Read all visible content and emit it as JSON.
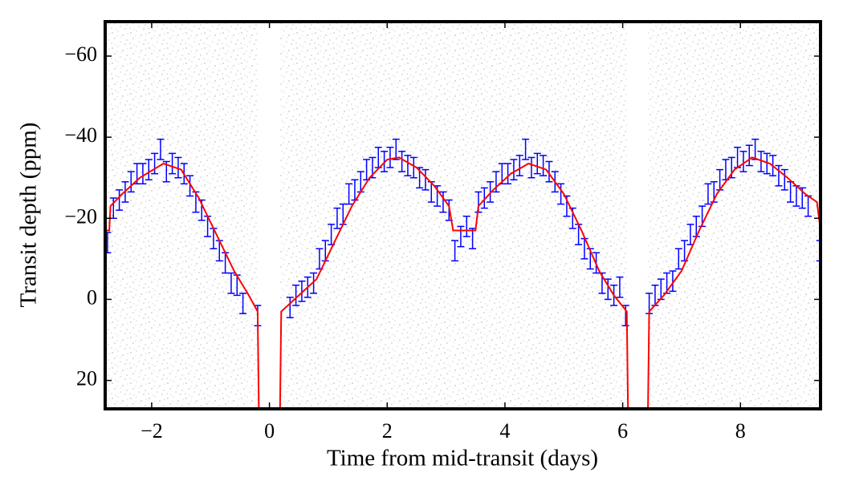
{
  "chart_data": {
    "type": "errorbar",
    "x_label": "Time from mid-transit (days)",
    "y_label": "Transit depth (ppm)",
    "xlim": [
      -2.79,
      9.36
    ],
    "ylim": [
      27,
      -68.5
    ],
    "xticks": [
      {
        "value": -2,
        "label": "−2"
      },
      0,
      2,
      4,
      6,
      8
    ],
    "yticks": [
      {
        "value": -60,
        "label": "−60"
      },
      {
        "value": -40,
        "label": "−40"
      },
      {
        "value": -20,
        "label": "−20"
      },
      0,
      20
    ],
    "observed_ranges": [
      [
        -2.79,
        -0.18
      ],
      [
        0.18,
        6.09
      ],
      [
        6.43,
        9.36
      ]
    ],
    "series": [
      {
        "type": "errorbar",
        "color": "#0000ff",
        "error": 2.5,
        "x": [
          -2.75,
          -2.65,
          -2.55,
          -2.45,
          -2.35,
          -2.25,
          -2.15,
          -2.05,
          -1.95,
          -1.85,
          -1.75,
          -1.65,
          -1.55,
          -1.45,
          -1.35,
          -1.25,
          -1.15,
          -1.05,
          -0.95,
          -0.85,
          -0.75,
          -0.65,
          -0.55,
          -0.45,
          -0.2,
          0.35,
          0.45,
          0.55,
          0.65,
          0.75,
          0.85,
          0.95,
          1.05,
          1.15,
          1.25,
          1.35,
          1.45,
          1.55,
          1.65,
          1.75,
          1.85,
          1.95,
          2.05,
          2.15,
          2.25,
          2.35,
          2.45,
          2.55,
          2.65,
          2.75,
          2.85,
          2.95,
          3.05,
          3.15,
          3.25,
          3.35,
          3.45,
          3.55,
          3.65,
          3.75,
          3.85,
          3.95,
          4.05,
          4.15,
          4.25,
          4.35,
          4.45,
          4.55,
          4.65,
          4.75,
          4.85,
          4.95,
          5.05,
          5.15,
          5.25,
          5.35,
          5.45,
          5.55,
          5.65,
          5.75,
          5.85,
          5.95,
          6.05,
          6.45,
          6.55,
          6.65,
          6.75,
          6.85,
          6.95,
          7.05,
          7.15,
          7.25,
          7.35,
          7.45,
          7.55,
          7.65,
          7.75,
          7.85,
          7.95,
          8.05,
          8.15,
          8.25,
          8.35,
          8.45,
          8.55,
          8.65,
          8.75,
          8.85,
          8.95,
          9.05,
          9.15,
          9.35
        ],
        "values": [
          -14,
          -22.5,
          -24.5,
          -26.5,
          -29,
          -31,
          -31,
          -32,
          -33.5,
          -37,
          -31.5,
          -33.5,
          -32.5,
          -31,
          -28,
          -24,
          -22,
          -18,
          -15,
          -12,
          -9,
          -4,
          -3.5,
          1,
          4,
          2,
          -1,
          -2,
          -3,
          -4,
          -10,
          -12,
          -16,
          -20,
          -21,
          -26,
          -27,
          -29,
          -32,
          -32.5,
          -35,
          -34,
          -35,
          -37,
          -34,
          -33,
          -32.5,
          -30,
          -29.5,
          -26.5,
          -25.5,
          -24,
          -22,
          -12,
          -15.5,
          -18,
          -15,
          -24,
          -25,
          -26.5,
          -29,
          -31,
          -31,
          -32,
          -33,
          -37,
          -32.5,
          -33.5,
          -33,
          -31.5,
          -29,
          -26,
          -23,
          -20,
          -16,
          -12.5,
          -10,
          -9,
          -4,
          -2.5,
          -1,
          -3,
          4,
          1,
          -1,
          -2.5,
          -4,
          -4.5,
          -10,
          -12,
          -16,
          -18,
          -20.5,
          -26,
          -26.5,
          -29.5,
          -32,
          -32.5,
          -35,
          -34,
          -35.5,
          -37,
          -34,
          -33.5,
          -33,
          -30.5,
          -29.5,
          -26.5,
          -25.5,
          -25,
          -23,
          -12
        ]
      },
      {
        "type": "line",
        "color": "#ff0000",
        "x": [
          -2.79,
          -2.72,
          -2.7,
          -2.5,
          -2.2,
          -1.8,
          -1.5,
          -1.2,
          -0.9,
          -0.6,
          -0.35,
          -0.2,
          -0.18,
          null,
          0.18,
          0.2,
          0.5,
          0.8,
          1.1,
          1.4,
          1.7,
          2.0,
          2.2,
          2.5,
          2.8,
          3.05,
          3.12,
          3.5,
          3.55,
          3.8,
          4.1,
          4.4,
          4.7,
          5.0,
          5.3,
          5.6,
          5.85,
          6.07,
          6.09,
          null,
          6.43,
          6.45,
          6.7,
          7.0,
          7.3,
          7.6,
          7.9,
          8.2,
          8.5,
          8.8,
          9.1,
          9.3,
          9.36
        ],
        "values": [
          -17,
          -17,
          -23,
          -26,
          -30,
          -33.5,
          -32,
          -25,
          -16,
          -7,
          -1,
          3,
          27,
          null,
          27,
          3,
          -1,
          -5,
          -14,
          -23,
          -30,
          -34.5,
          -35,
          -32.5,
          -28,
          -23,
          -17,
          -17,
          -23,
          -27,
          -31,
          -33.5,
          -32,
          -26,
          -17,
          -7,
          -1,
          3,
          27,
          null,
          27,
          3,
          -1,
          -7,
          -17,
          -26,
          -32,
          -35,
          -33.5,
          -30,
          -26,
          -24,
          -17
        ]
      }
    ]
  }
}
